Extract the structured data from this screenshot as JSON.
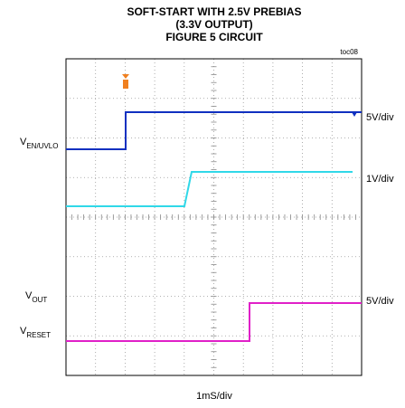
{
  "title": [
    "SOFT-START WITH 2.5V PREBIAS",
    "(3.3V OUTPUT)",
    "FIGURE 5 CIRCUIT"
  ],
  "figure_id": "toc08",
  "channel_labels": [
    {
      "main": "V",
      "sub": "EN/UVLO"
    },
    {
      "main": "V",
      "sub": "OUT"
    },
    {
      "main": "V",
      "sub": "RESET"
    }
  ],
  "scales": [
    "5V/div",
    "1V/div",
    "5V/div"
  ],
  "time_scale": "1mS/div"
}
